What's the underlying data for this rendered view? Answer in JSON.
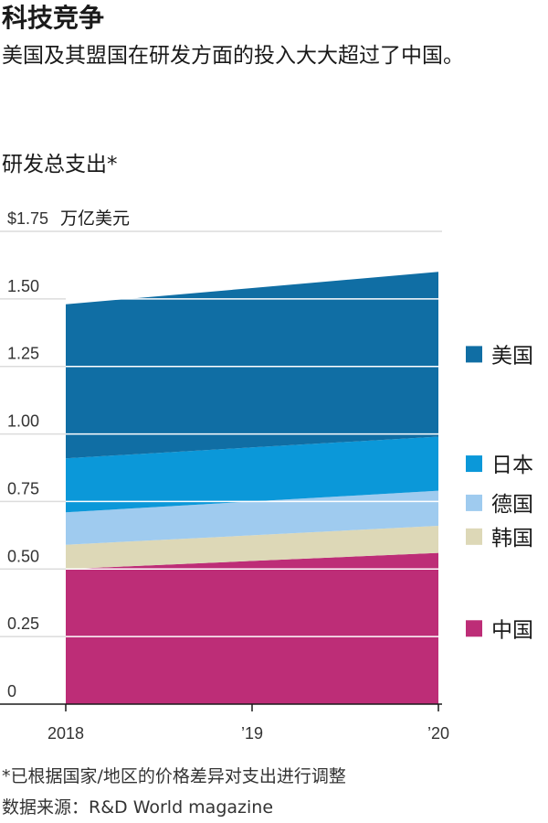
{
  "chart_data": {
    "type": "area",
    "stacked": true,
    "title": "科技竞争",
    "subtitle": "美国及其盟国在研发方面的投入大大超过了中国。",
    "ylabel": "研发总支出*",
    "yunit": "万亿美元",
    "x": [
      2018,
      2019,
      2020
    ],
    "xtick_labels": [
      "2018",
      "’19",
      "’20"
    ],
    "ylim": [
      0,
      1.75
    ],
    "yticks": [
      0,
      0.25,
      0.5,
      0.75,
      1.0,
      1.25,
      1.5,
      1.75
    ],
    "ytick_labels": [
      "0",
      "0.25",
      "0.50",
      "0.75",
      "1.00",
      "1.25",
      "1.50",
      "$1.75"
    ],
    "grid": true,
    "legend_position": "right",
    "series": [
      {
        "name": "中国",
        "color": "#bd2d77",
        "values": [
          0.5,
          0.53,
          0.56
        ]
      },
      {
        "name": "韩国",
        "color": "#ddd8b7",
        "values": [
          0.09,
          0.095,
          0.1
        ]
      },
      {
        "name": "德国",
        "color": "#9fcbef",
        "values": [
          0.12,
          0.125,
          0.13
        ]
      },
      {
        "name": "日本",
        "color": "#0b98d9",
        "values": [
          0.2,
          0.2,
          0.2
        ]
      },
      {
        "name": "美国",
        "color": "#106ea4",
        "values": [
          0.57,
          0.59,
          0.61
        ]
      }
    ],
    "footnote": "*已根据国家/地区的价格差异对支出进行调整",
    "source": "数据来源：R&D World magazine"
  }
}
